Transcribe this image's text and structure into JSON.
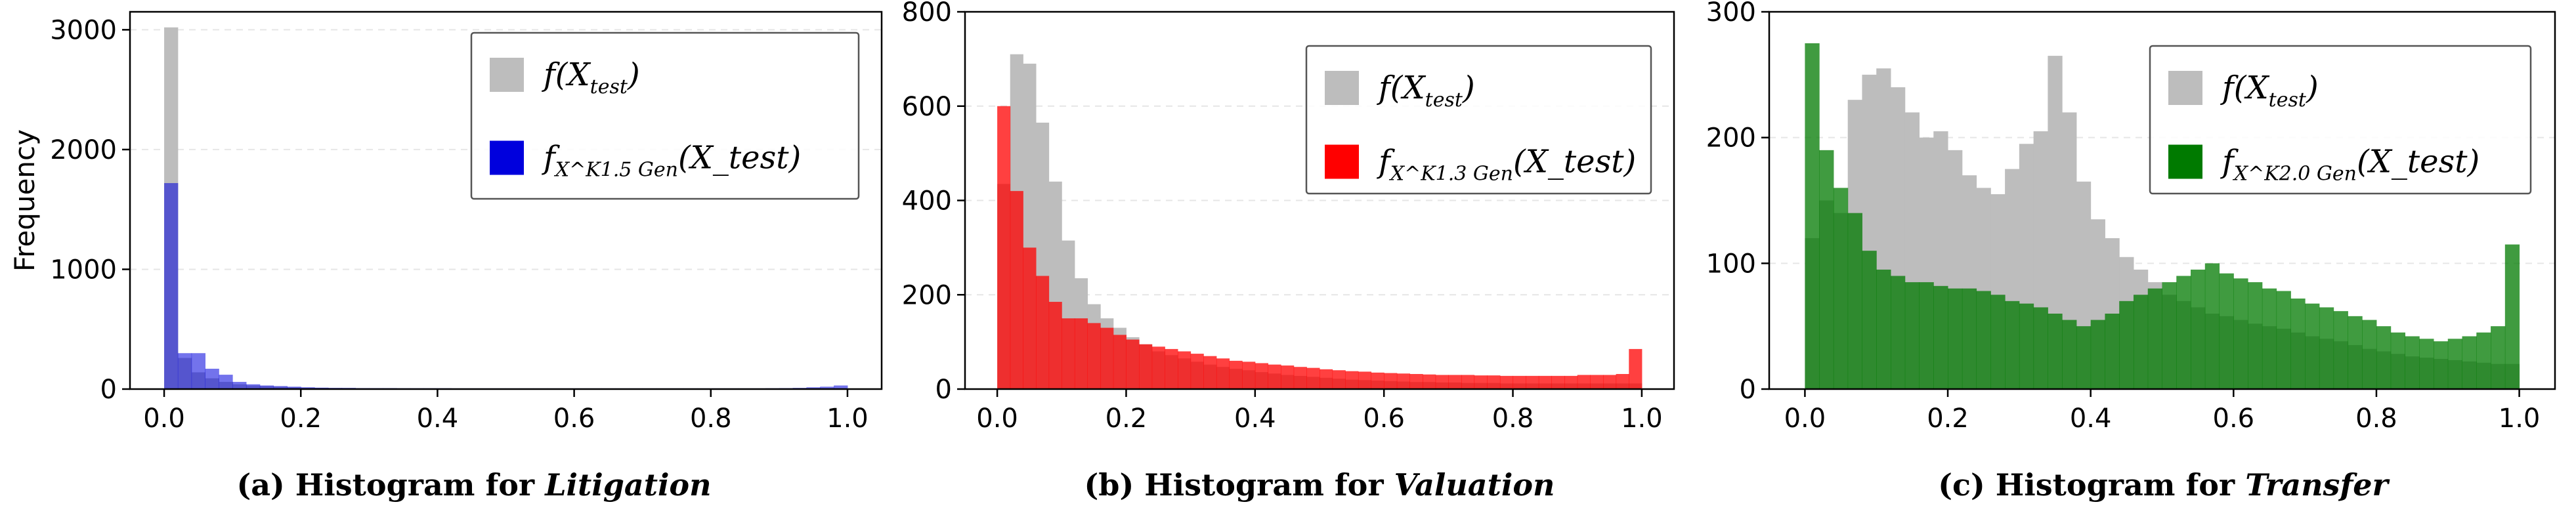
{
  "chart_data": [
    {
      "type": "histogram",
      "id": "a",
      "caption_prefix": "(a) Histogram for ",
      "caption_topic": "Litigation",
      "ylabel": "Frequency",
      "xlim": [
        -0.05,
        1.05
      ],
      "ylim": [
        0,
        3150
      ],
      "yticks": [
        0,
        1000,
        2000,
        3000
      ],
      "xticks": [
        "0.0",
        "0.2",
        "0.4",
        "0.6",
        "0.8",
        "1.0"
      ],
      "bin_start": 0.0,
      "bin_width": 0.02,
      "legend": [
        {
          "name": "f(X_test)",
          "main": "f(X",
          "sub": "test",
          "tail": ")",
          "color": "#bdbdbd"
        },
        {
          "name": "f_X^K1.5_Gen(X_test)",
          "main": "f",
          "sub": "X^K1.5 Gen",
          "tail": "(X_test)",
          "color": "#0000dd"
        }
      ],
      "series": [
        {
          "name": "f(X_test)",
          "color": "#bdbdbd",
          "opacity": 1,
          "values": [
            3020,
            260,
            140,
            90,
            60,
            40,
            30,
            25,
            20,
            15,
            12,
            10,
            9,
            8,
            8,
            7,
            7,
            6,
            6,
            6,
            5,
            5,
            5,
            5,
            5,
            5,
            5,
            5,
            5,
            5,
            5,
            5,
            5,
            5,
            5,
            5,
            5,
            5,
            5,
            5,
            5,
            5,
            5,
            5,
            5,
            5,
            5,
            5,
            5,
            5
          ]
        },
        {
          "name": "f_X^K1.5_Gen(X_test)",
          "color": "#0000dd",
          "opacity": 0.55,
          "values": [
            1720,
            300,
            300,
            170,
            120,
            60,
            40,
            30,
            25,
            20,
            15,
            12,
            10,
            10,
            8,
            8,
            8,
            7,
            7,
            7,
            7,
            6,
            6,
            6,
            6,
            6,
            6,
            6,
            6,
            6,
            6,
            6,
            6,
            6,
            6,
            6,
            6,
            6,
            6,
            6,
            6,
            6,
            6,
            6,
            7,
            8,
            10,
            15,
            20,
            30
          ]
        }
      ]
    },
    {
      "type": "histogram",
      "id": "b",
      "caption_prefix": "(b) Histogram for ",
      "caption_topic": "Valuation",
      "ylabel": "",
      "xlim": [
        -0.05,
        1.05
      ],
      "ylim": [
        0,
        800
      ],
      "yticks": [
        0,
        200,
        400,
        600,
        800
      ],
      "xticks": [
        "0.0",
        "0.2",
        "0.4",
        "0.6",
        "0.8",
        "1.0"
      ],
      "bin_start": 0.0,
      "bin_width": 0.02,
      "legend": [
        {
          "name": "f(X_test)",
          "main": "f(X",
          "sub": "test",
          "tail": ")",
          "color": "#bdbdbd"
        },
        {
          "name": "f_X^K1.3_Gen(X_test)",
          "main": "f",
          "sub": "X^K1.3 Gen",
          "tail": "(X_test)",
          "color": "#ff0000"
        }
      ],
      "series": [
        {
          "name": "f(X_test)",
          "color": "#bdbdbd",
          "opacity": 1,
          "values": [
            435,
            710,
            690,
            565,
            440,
            315,
            235,
            180,
            150,
            130,
            110,
            95,
            80,
            72,
            65,
            58,
            52,
            47,
            43,
            40,
            36,
            33,
            30,
            28,
            26,
            24,
            22,
            20,
            19,
            18,
            17,
            16,
            15,
            15,
            14,
            14,
            13,
            13,
            13,
            12,
            12,
            12,
            12,
            12,
            12,
            12,
            12,
            12,
            12,
            12
          ]
        },
        {
          "name": "f_X^K1.3_Gen(X_test)",
          "color": "#ff0000",
          "opacity": 0.75,
          "values": [
            600,
            420,
            300,
            240,
            185,
            150,
            150,
            140,
            130,
            115,
            105,
            95,
            90,
            85,
            80,
            75,
            70,
            65,
            60,
            58,
            55,
            52,
            50,
            47,
            45,
            42,
            40,
            38,
            37,
            35,
            34,
            33,
            32,
            31,
            30,
            30,
            30,
            29,
            29,
            28,
            28,
            28,
            28,
            28,
            28,
            30,
            30,
            30,
            32,
            85
          ]
        }
      ]
    },
    {
      "type": "histogram",
      "id": "c",
      "caption_prefix": "(c) Histogram for ",
      "caption_topic": "Transfer",
      "ylabel": "",
      "xlim": [
        -0.05,
        1.05
      ],
      "ylim": [
        0,
        300
      ],
      "yticks": [
        0,
        100,
        200,
        300
      ],
      "xticks": [
        "0.0",
        "0.2",
        "0.4",
        "0.6",
        "0.8",
        "1.0"
      ],
      "bin_start": 0.0,
      "bin_width": 0.02,
      "legend": [
        {
          "name": "f(X_test)",
          "main": "f(X",
          "sub": "test",
          "tail": ")",
          "color": "#bdbdbd"
        },
        {
          "name": "f_X^K2.0_Gen(X_test)",
          "main": "f",
          "sub": "X^K2.0 Gen",
          "tail": "(X_test)",
          "color": "#007a00"
        }
      ],
      "series": [
        {
          "name": "f(X_test)",
          "color": "#bdbdbd",
          "opacity": 1,
          "values": [
            120,
            150,
            140,
            230,
            250,
            255,
            240,
            220,
            200,
            205,
            190,
            170,
            160,
            155,
            175,
            195,
            205,
            265,
            220,
            165,
            135,
            120,
            105,
            95,
            85,
            75,
            70,
            65,
            60,
            58,
            55,
            52,
            50,
            48,
            45,
            42,
            40,
            38,
            35,
            32,
            30,
            28,
            26,
            25,
            24,
            23,
            22,
            21,
            20,
            20
          ]
        },
        {
          "name": "f_X^K2.0_Gen(X_test)",
          "color": "#007a00",
          "opacity": 0.75,
          "values": [
            275,
            190,
            160,
            140,
            110,
            95,
            90,
            85,
            85,
            82,
            80,
            80,
            78,
            75,
            70,
            68,
            65,
            60,
            55,
            50,
            55,
            60,
            70,
            75,
            80,
            85,
            90,
            95,
            100,
            92,
            88,
            85,
            80,
            78,
            72,
            68,
            65,
            62,
            58,
            55,
            50,
            45,
            42,
            40,
            38,
            40,
            42,
            45,
            50,
            115
          ]
        }
      ]
    }
  ]
}
